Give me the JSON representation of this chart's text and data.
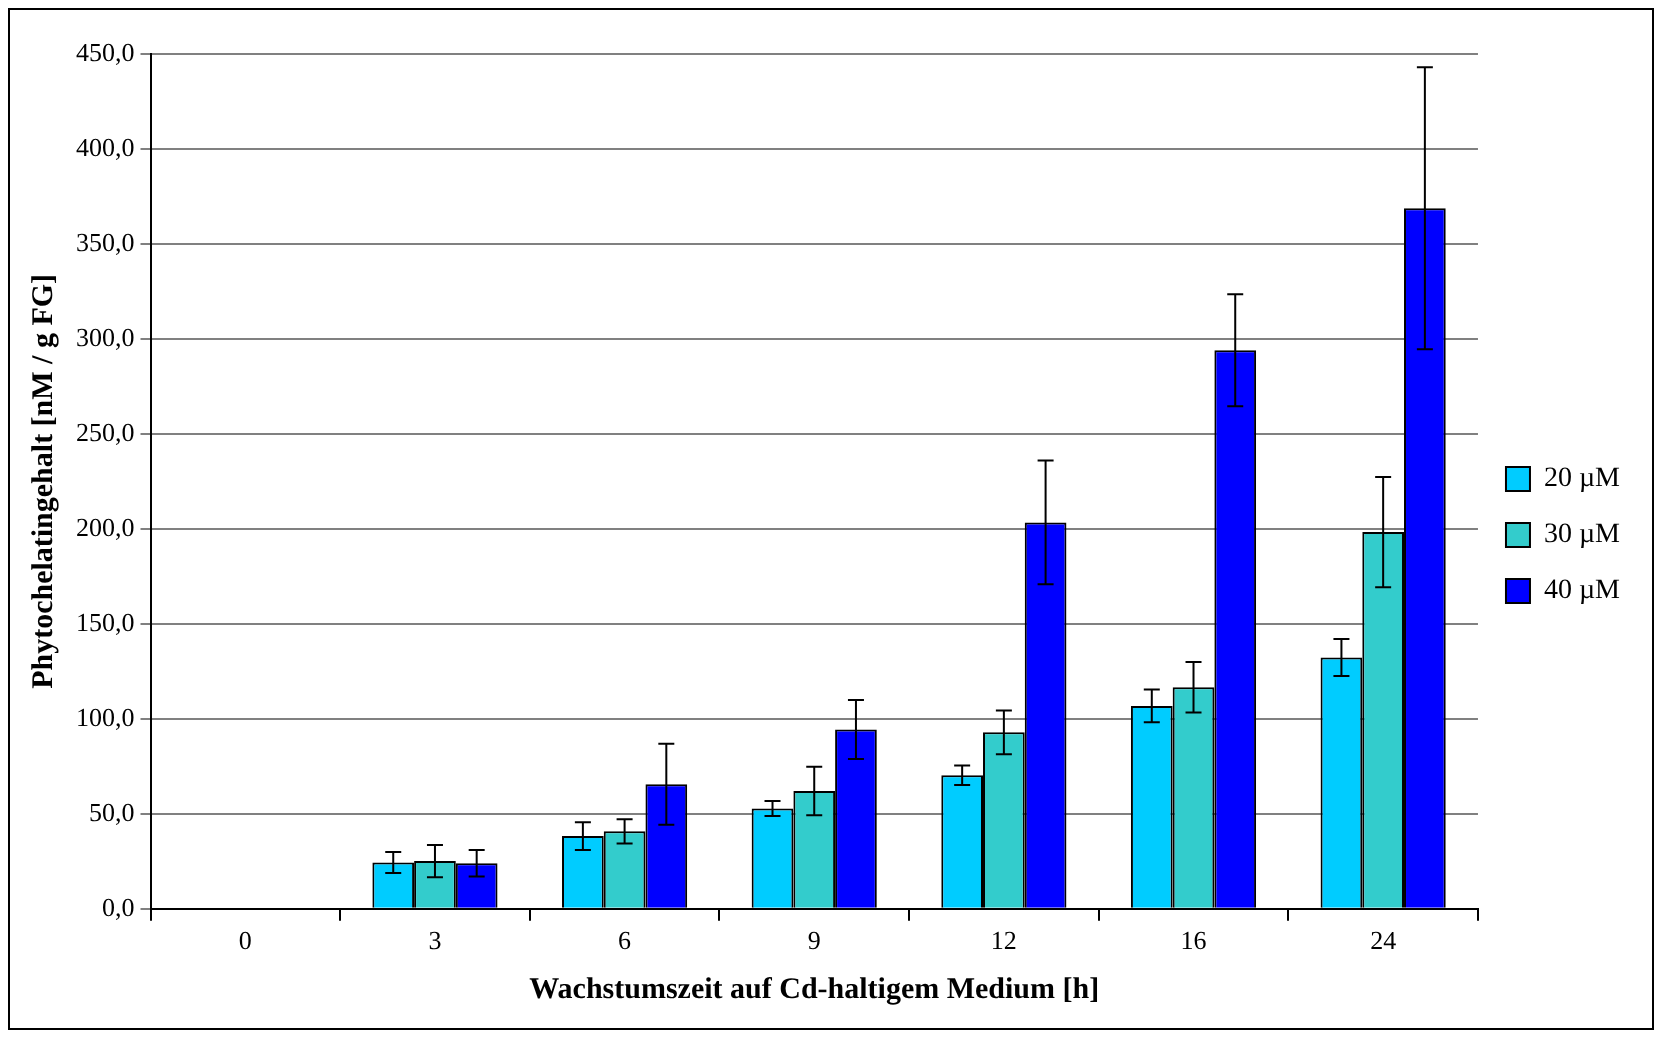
{
  "chart_data": {
    "type": "bar",
    "xlabel": "Wachstumszeit auf Cd-haltigem Medium [h]",
    "ylabel": "Phytochelatingehalt [nM / g FG]",
    "categories": [
      "0",
      "3",
      "6",
      "9",
      "12",
      "16",
      "24"
    ],
    "series": [
      {
        "name": "20 µM",
        "color": "#00ccff",
        "values": [
          0,
          24.4,
          38.3,
          52.8,
          70.3,
          106.8,
          132.3
        ],
        "errors": [
          null,
          5.5,
          7.3,
          4,
          5.1,
          8.6,
          9.7
        ]
      },
      {
        "name": "30 µM",
        "color": "#33cccc",
        "values": [
          0,
          25.1,
          40.8,
          62,
          92.9,
          116.6,
          198.3
        ],
        "errors": [
          null,
          8.5,
          6.4,
          12.8,
          11.5,
          13.3,
          29
        ]
      },
      {
        "name": "40 µM",
        "color": "#0000ff",
        "values": [
          0,
          24,
          65.6,
          94.4,
          203.4,
          294,
          368.8
        ],
        "errors": [
          null,
          7,
          21.3,
          15.5,
          32.6,
          29.5,
          74.2
        ]
      }
    ],
    "ylim": [
      0,
      450
    ],
    "yticks": [
      {
        "value": 0,
        "label": "0,0"
      },
      {
        "value": 50,
        "label": "50,0"
      },
      {
        "value": 100,
        "label": "100,0"
      },
      {
        "value": 150,
        "label": "150,0"
      },
      {
        "value": 200,
        "label": "200,0"
      },
      {
        "value": 250,
        "label": "250,0"
      },
      {
        "value": 300,
        "label": "300,0"
      },
      {
        "value": 350,
        "label": "350,0"
      },
      {
        "value": 400,
        "label": "400,0"
      },
      {
        "value": 450,
        "label": "450,0"
      }
    ],
    "grid": "y",
    "legend": "right"
  }
}
